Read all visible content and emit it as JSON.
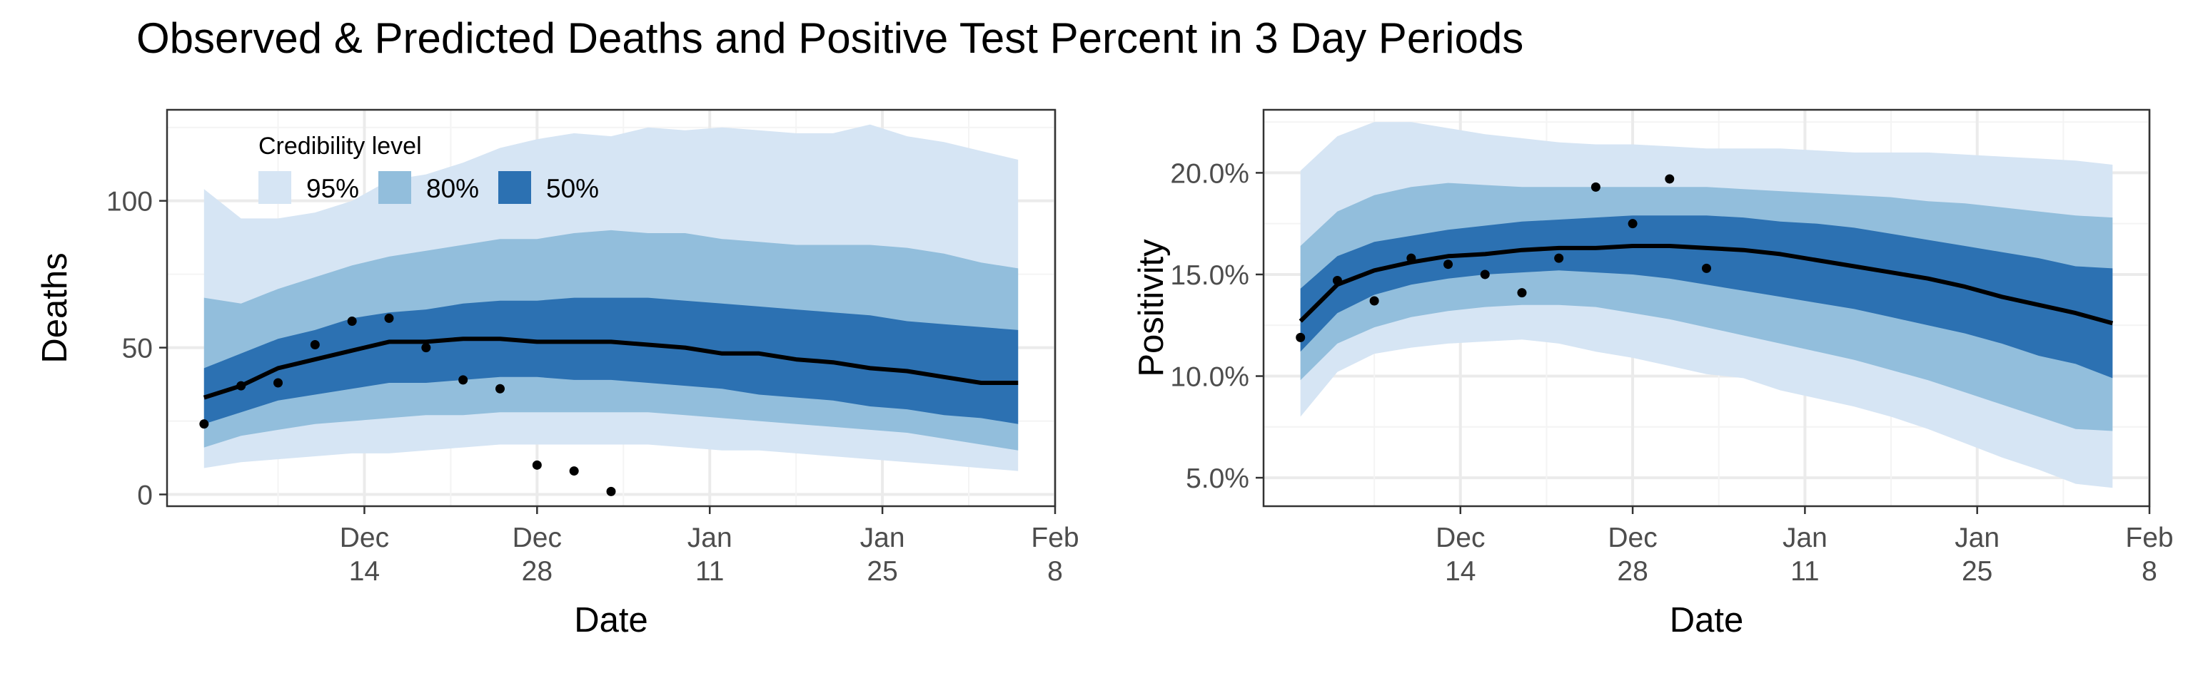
{
  "figure": {
    "title": "Observed & Predicted Deaths and Positive Test Percent in 3 Day Periods"
  },
  "colors": {
    "band95": "#d6e5f4",
    "band80": "#92bedc",
    "band50": "#2c71b2",
    "median": "#000000",
    "grid_major": "#ebebeb",
    "grid_minor": "#f4f4f4",
    "panel_border": "#333333",
    "tick_text": "#4d4d4d"
  },
  "legend": {
    "title": "Credibility level",
    "items": [
      {
        "label": "95%",
        "color_key": "band95"
      },
      {
        "label": "80%",
        "color_key": "band80"
      },
      {
        "label": "50%",
        "color_key": "band50"
      }
    ]
  },
  "chart_data": [
    {
      "type": "area",
      "xlabel": "Date",
      "ylabel": "Deaths",
      "x_unit": "date",
      "xlim": [
        "2020-11-28",
        "2021-02-08"
      ],
      "ylim": [
        -4,
        131
      ],
      "grid": true,
      "legend_position": "top-left",
      "x_ticks": [
        {
          "date": "2020-12-14",
          "line1": "Dec",
          "line2": "14"
        },
        {
          "date": "2020-12-28",
          "line1": "Dec",
          "line2": "28"
        },
        {
          "date": "2021-01-11",
          "line1": "Jan",
          "line2": "11"
        },
        {
          "date": "2021-01-25",
          "line1": "Jan",
          "line2": "25"
        },
        {
          "date": "2021-02-08",
          "line1": "Feb",
          "line2": "8"
        }
      ],
      "y_ticks": [
        {
          "value": 0,
          "label": "0"
        },
        {
          "value": 50,
          "label": "50"
        },
        {
          "value": 100,
          "label": "100"
        }
      ],
      "y_minor": [
        25,
        75,
        125
      ],
      "bands": {
        "x": [
          "2020-12-01",
          "2020-12-04",
          "2020-12-07",
          "2020-12-10",
          "2020-12-13",
          "2020-12-16",
          "2020-12-19",
          "2020-12-22",
          "2020-12-25",
          "2020-12-28",
          "2020-12-31",
          "2021-01-03",
          "2021-01-06",
          "2021-01-09",
          "2021-01-12",
          "2021-01-15",
          "2021-01-18",
          "2021-01-21",
          "2021-01-24",
          "2021-01-27",
          "2021-01-30",
          "2021-02-02",
          "2021-02-05"
        ],
        "q025": [
          9,
          11,
          12,
          13,
          14,
          14,
          15,
          16,
          17,
          17,
          17,
          17,
          17,
          16,
          15,
          15,
          14,
          13,
          12,
          11,
          10,
          9,
          8
        ],
        "q10": [
          16,
          20,
          22,
          24,
          25,
          26,
          27,
          27,
          28,
          28,
          28,
          28,
          28,
          27,
          26,
          25,
          24,
          23,
          22,
          21,
          19,
          17,
          15
        ],
        "q25": [
          24,
          28,
          32,
          34,
          36,
          38,
          38,
          39,
          40,
          40,
          39,
          39,
          38,
          37,
          36,
          34,
          33,
          32,
          30,
          29,
          27,
          26,
          24
        ],
        "median": [
          33,
          37,
          43,
          46,
          49,
          52,
          52,
          53,
          53,
          52,
          52,
          52,
          51,
          50,
          48,
          48,
          46,
          45,
          43,
          42,
          40,
          38,
          38
        ],
        "q75": [
          43,
          48,
          53,
          56,
          60,
          62,
          63,
          65,
          66,
          66,
          67,
          67,
          67,
          66,
          65,
          64,
          63,
          62,
          61,
          59,
          58,
          57,
          56
        ],
        "q90": [
          67,
          65,
          70,
          74,
          78,
          81,
          83,
          85,
          87,
          87,
          89,
          90,
          89,
          89,
          87,
          86,
          85,
          85,
          85,
          84,
          82,
          79,
          77
        ],
        "q975": [
          104,
          94,
          94,
          96,
          100,
          107,
          109,
          113,
          118,
          121,
          123,
          122,
          125,
          124,
          125,
          124,
          123,
          123,
          126,
          122,
          120,
          117,
          114
        ]
      },
      "observed": [
        {
          "x": "2020-12-01",
          "y": 24
        },
        {
          "x": "2020-12-04",
          "y": 37
        },
        {
          "x": "2020-12-07",
          "y": 38
        },
        {
          "x": "2020-12-10",
          "y": 51
        },
        {
          "x": "2020-12-13",
          "y": 59
        },
        {
          "x": "2020-12-16",
          "y": 60
        },
        {
          "x": "2020-12-19",
          "y": 50
        },
        {
          "x": "2020-12-22",
          "y": 39
        },
        {
          "x": "2020-12-25",
          "y": 36
        },
        {
          "x": "2020-12-28",
          "y": 10
        },
        {
          "x": "2020-12-31",
          "y": 8
        },
        {
          "x": "2021-01-03",
          "y": 1
        }
      ]
    },
    {
      "type": "area",
      "xlabel": "Date",
      "ylabel": "Positivity",
      "x_unit": "date",
      "xlim": [
        "2020-11-28",
        "2021-02-08"
      ],
      "ylim": [
        3.6,
        23.1
      ],
      "grid": true,
      "x_ticks": [
        {
          "date": "2020-12-14",
          "line1": "Dec",
          "line2": "14"
        },
        {
          "date": "2020-12-28",
          "line1": "Dec",
          "line2": "28"
        },
        {
          "date": "2021-01-11",
          "line1": "Jan",
          "line2": "11"
        },
        {
          "date": "2021-01-25",
          "line1": "Jan",
          "line2": "25"
        },
        {
          "date": "2021-02-08",
          "line1": "Feb",
          "line2": "8"
        }
      ],
      "y_ticks": [
        {
          "value": 5,
          "label": "5.0%"
        },
        {
          "value": 10,
          "label": "10.0%"
        },
        {
          "value": 15,
          "label": "15.0%"
        },
        {
          "value": 20,
          "label": "20.0%"
        }
      ],
      "y_minor": [
        7.5,
        12.5,
        17.5,
        22.5
      ],
      "bands": {
        "x": [
          "2020-12-01",
          "2020-12-04",
          "2020-12-07",
          "2020-12-10",
          "2020-12-13",
          "2020-12-16",
          "2020-12-19",
          "2020-12-22",
          "2020-12-25",
          "2020-12-28",
          "2020-12-31",
          "2021-01-03",
          "2021-01-06",
          "2021-01-09",
          "2021-01-12",
          "2021-01-15",
          "2021-01-18",
          "2021-01-21",
          "2021-01-24",
          "2021-01-27",
          "2021-01-30",
          "2021-02-02",
          "2021-02-05"
        ],
        "q025": [
          8.0,
          10.2,
          11.1,
          11.4,
          11.6,
          11.7,
          11.8,
          11.6,
          11.2,
          10.9,
          10.5,
          10.1,
          9.9,
          9.3,
          8.9,
          8.5,
          8.0,
          7.4,
          6.7,
          6.0,
          5.4,
          4.7,
          4.5
        ],
        "q10": [
          9.8,
          11.6,
          12.4,
          12.9,
          13.2,
          13.4,
          13.5,
          13.5,
          13.4,
          13.1,
          12.8,
          12.4,
          12.0,
          11.6,
          11.2,
          10.8,
          10.3,
          9.8,
          9.2,
          8.6,
          8.0,
          7.4,
          7.3
        ],
        "q25": [
          11.2,
          13.1,
          14.0,
          14.5,
          14.8,
          15.0,
          15.1,
          15.2,
          15.1,
          15.0,
          14.8,
          14.5,
          14.2,
          13.9,
          13.6,
          13.3,
          12.9,
          12.5,
          12.1,
          11.6,
          11.0,
          10.6,
          9.9
        ],
        "median": [
          12.7,
          14.5,
          15.2,
          15.6,
          15.9,
          16.0,
          16.2,
          16.3,
          16.3,
          16.4,
          16.4,
          16.3,
          16.2,
          16.0,
          15.7,
          15.4,
          15.1,
          14.8,
          14.4,
          13.9,
          13.5,
          13.1,
          12.6
        ],
        "q75": [
          14.3,
          15.9,
          16.6,
          16.9,
          17.2,
          17.4,
          17.6,
          17.7,
          17.8,
          17.9,
          17.9,
          17.9,
          17.8,
          17.6,
          17.5,
          17.3,
          17.0,
          16.7,
          16.4,
          16.1,
          15.8,
          15.4,
          15.3
        ],
        "q90": [
          16.4,
          18.1,
          18.9,
          19.3,
          19.5,
          19.4,
          19.3,
          19.3,
          19.3,
          19.3,
          19.3,
          19.3,
          19.2,
          19.1,
          19.0,
          18.9,
          18.8,
          18.6,
          18.5,
          18.3,
          18.1,
          17.9,
          17.8
        ],
        "q975": [
          20.1,
          21.8,
          22.5,
          22.5,
          22.2,
          21.9,
          21.7,
          21.5,
          21.4,
          21.4,
          21.3,
          21.2,
          21.2,
          21.2,
          21.1,
          21.0,
          21.0,
          21.0,
          20.9,
          20.8,
          20.7,
          20.6,
          20.4
        ]
      },
      "observed": [
        {
          "x": "2020-12-01",
          "y": 11.9
        },
        {
          "x": "2020-12-04",
          "y": 14.7
        },
        {
          "x": "2020-12-07",
          "y": 13.7
        },
        {
          "x": "2020-12-10",
          "y": 15.8
        },
        {
          "x": "2020-12-13",
          "y": 15.5
        },
        {
          "x": "2020-12-16",
          "y": 15.0
        },
        {
          "x": "2020-12-19",
          "y": 14.1
        },
        {
          "x": "2020-12-22",
          "y": 15.8
        },
        {
          "x": "2020-12-25",
          "y": 19.3
        },
        {
          "x": "2020-12-28",
          "y": 17.5
        },
        {
          "x": "2020-12-31",
          "y": 19.7
        },
        {
          "x": "2021-01-03",
          "y": 15.3
        }
      ]
    }
  ]
}
